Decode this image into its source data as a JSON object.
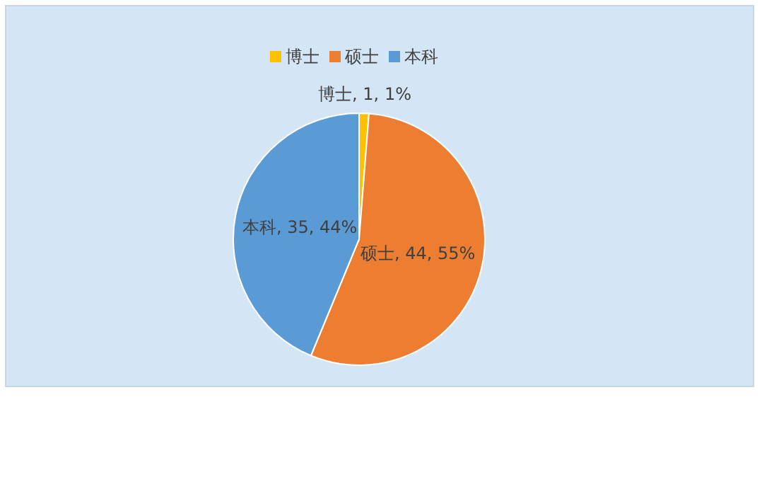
{
  "chart_data": {
    "type": "pie",
    "categories": [
      "博士",
      "硕士",
      "本科"
    ],
    "values": [
      1,
      44,
      35
    ],
    "colors": [
      "#ffc000",
      "#ed7d31",
      "#5b9bd5"
    ],
    "value_labels": [
      "博士, 1, 1%",
      "硕士, 44, 55%",
      "本科, 35, 44%"
    ],
    "legend": "top"
  }
}
